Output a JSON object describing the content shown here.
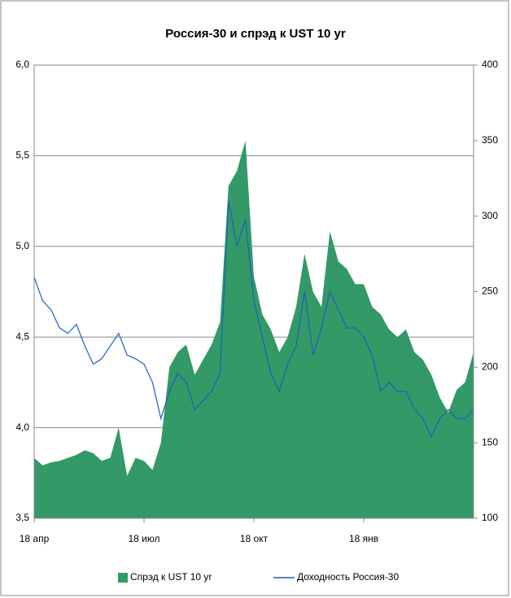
{
  "chart_data": {
    "type": "combo",
    "title": "Россия-30 и спрэд к UST 10 yr",
    "categories": [
      "18 апр",
      null,
      null,
      null,
      null,
      null,
      null,
      null,
      null,
      null,
      null,
      null,
      null,
      "18 июл",
      null,
      null,
      null,
      null,
      null,
      null,
      null,
      null,
      null,
      null,
      null,
      null,
      "18 окт",
      null,
      null,
      null,
      null,
      null,
      null,
      null,
      null,
      null,
      null,
      null,
      null,
      "18 янв",
      null,
      null,
      null,
      null,
      null,
      null,
      null,
      null,
      null,
      null,
      null,
      null,
      null
    ],
    "series": [
      {
        "name": "Спрэд к UST 10 yr",
        "type": "area",
        "axis": "y2",
        "color": "#339966",
        "values": [
          140,
          135,
          137,
          138,
          140,
          142,
          145,
          143,
          138,
          140,
          160,
          128,
          140,
          138,
          132,
          150,
          200,
          210,
          215,
          195,
          205,
          215,
          230,
          320,
          330,
          350,
          260,
          235,
          225,
          210,
          220,
          240,
          275,
          250,
          240,
          290,
          270,
          265,
          255,
          255,
          240,
          235,
          225,
          220,
          225,
          210,
          205,
          195,
          180,
          170,
          185,
          190,
          210
        ]
      },
      {
        "name": "Доходность Россия-30",
        "type": "line",
        "color": "#1f5fbf",
        "values": [
          4.83,
          4.7,
          4.65,
          4.55,
          4.52,
          4.57,
          4.45,
          4.35,
          4.38,
          4.45,
          4.52,
          4.4,
          4.38,
          4.35,
          4.25,
          4.05,
          4.2,
          4.3,
          4.25,
          4.1,
          4.15,
          4.2,
          4.3,
          5.25,
          5.0,
          5.15,
          4.7,
          4.5,
          4.3,
          4.2,
          4.35,
          4.45,
          4.75,
          4.4,
          4.55,
          4.75,
          4.65,
          4.55,
          4.55,
          4.5,
          4.4,
          4.2,
          4.25,
          4.2,
          4.2,
          4.1,
          4.05,
          3.95,
          4.05,
          4.1,
          4.05,
          4.05,
          4.1
        ]
      }
    ],
    "ylim": [
      3.5,
      6.0
    ],
    "yticks": [
      {
        "value": 3.5,
        "label": "3,5"
      },
      {
        "value": 4.0,
        "label": "4,0"
      },
      {
        "value": 4.5,
        "label": "4,5"
      },
      {
        "value": 5.0,
        "label": "5,0"
      },
      {
        "value": 5.5,
        "label": "5,5"
      },
      {
        "value": 6.0,
        "label": "6,0"
      }
    ],
    "y2lim": [
      100,
      400
    ],
    "y2ticks": [
      100,
      150,
      200,
      250,
      300,
      350,
      400
    ],
    "grid": true
  }
}
